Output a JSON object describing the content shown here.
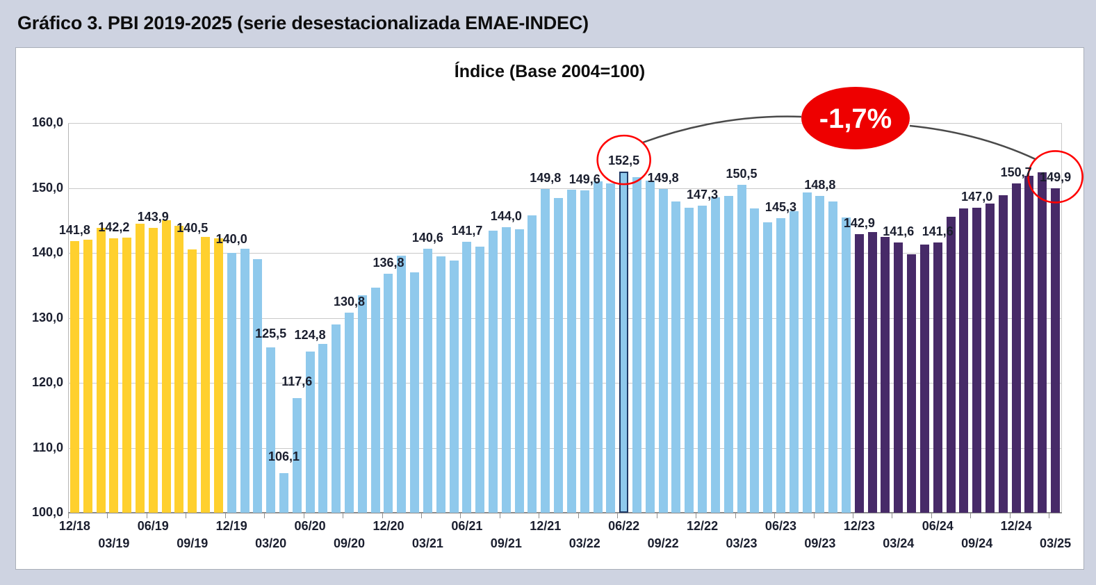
{
  "header": {
    "title": "Gráfico 3. PBI 2019-2025 (serie desestacionalizada EMAE-INDEC)"
  },
  "chart_data": {
    "type": "bar",
    "title": "Índice (Base 2004=100)",
    "ylabel": "",
    "xlabel": "",
    "ylim": [
      100,
      160
    ],
    "grid": true,
    "y_axis": {
      "ticks": [
        "100,0",
        "110,0",
        "120,0",
        "130,0",
        "140,0",
        "150,0",
        "160,0"
      ]
    },
    "color_segments": [
      {
        "color": "#FFD02E",
        "from": 0,
        "to": 11
      },
      {
        "color": "#8FC9EC",
        "from": 12,
        "to": 59
      },
      {
        "color": "#472A68",
        "from": 60,
        "to": 75
      }
    ],
    "highlight_border_color": "#1F3864",
    "bars": [
      {
        "month": "12/18",
        "value": 141.8,
        "label": "141,8"
      },
      {
        "month": "01/19",
        "value": 142.0
      },
      {
        "month": "02/19",
        "value": 143.8
      },
      {
        "month": "03/19",
        "value": 142.2,
        "label": "142,2"
      },
      {
        "month": "04/19",
        "value": 142.4
      },
      {
        "month": "05/19",
        "value": 144.5
      },
      {
        "month": "06/19",
        "value": 143.9,
        "label": "143,9"
      },
      {
        "month": "07/19",
        "value": 145.0
      },
      {
        "month": "08/19",
        "value": 144.2
      },
      {
        "month": "09/19",
        "value": 140.5,
        "label": "140,5",
        "label_dy": 20
      },
      {
        "month": "10/19",
        "value": 142.5
      },
      {
        "month": "11/19",
        "value": 142.2
      },
      {
        "month": "12/19",
        "value": 140.0,
        "label": "140,0",
        "label_dy": 9
      },
      {
        "month": "01/20",
        "value": 140.6
      },
      {
        "month": "02/20",
        "value": 139.0
      },
      {
        "month": "03/20",
        "value": 125.5,
        "label": "125,5",
        "label_dy": 9
      },
      {
        "month": "04/20",
        "value": 106.1,
        "label": "106,1",
        "label_dy": 13
      },
      {
        "month": "05/20",
        "value": 117.6,
        "label": "117,6",
        "label_dy": 13
      },
      {
        "month": "06/20",
        "value": 124.8,
        "label": "124,8",
        "label_dy": 13
      },
      {
        "month": "07/20",
        "value": 126.0
      },
      {
        "month": "08/20",
        "value": 129.0
      },
      {
        "month": "09/20",
        "value": 130.8,
        "label": "130,8"
      },
      {
        "month": "10/20",
        "value": 133.5
      },
      {
        "month": "11/20",
        "value": 134.7
      },
      {
        "month": "12/20",
        "value": 136.8,
        "label": "136,8"
      },
      {
        "month": "01/21",
        "value": 139.6
      },
      {
        "month": "02/21",
        "value": 137.0
      },
      {
        "month": "03/21",
        "value": 140.6,
        "label": "140,6"
      },
      {
        "month": "04/21",
        "value": 139.5
      },
      {
        "month": "05/21",
        "value": 138.8
      },
      {
        "month": "06/21",
        "value": 141.7,
        "label": "141,7"
      },
      {
        "month": "07/21",
        "value": 141.0
      },
      {
        "month": "08/21",
        "value": 143.4
      },
      {
        "month": "09/21",
        "value": 144.0,
        "label": "144,0"
      },
      {
        "month": "10/21",
        "value": 143.6
      },
      {
        "month": "11/21",
        "value": 145.8
      },
      {
        "month": "12/21",
        "value": 149.8,
        "label": "149,8"
      },
      {
        "month": "01/22",
        "value": 148.4
      },
      {
        "month": "02/22",
        "value": 149.7
      },
      {
        "month": "03/22",
        "value": 149.6,
        "label": "149,6"
      },
      {
        "month": "04/22",
        "value": 151.0
      },
      {
        "month": "05/22",
        "value": 150.7
      },
      {
        "month": "06/22",
        "value": 152.5,
        "label": "152,5",
        "highlight": true
      },
      {
        "month": "07/22",
        "value": 151.7
      },
      {
        "month": "08/22",
        "value": 151.1
      },
      {
        "month": "09/22",
        "value": 149.8,
        "label": "149,8"
      },
      {
        "month": "10/22",
        "value": 147.9
      },
      {
        "month": "11/22",
        "value": 147.0
      },
      {
        "month": "12/22",
        "value": 147.3,
        "label": "147,3"
      },
      {
        "month": "01/23",
        "value": 148.6
      },
      {
        "month": "02/23",
        "value": 148.8
      },
      {
        "month": "03/23",
        "value": 150.5,
        "label": "150,5"
      },
      {
        "month": "04/23",
        "value": 146.9
      },
      {
        "month": "05/23",
        "value": 144.7
      },
      {
        "month": "06/23",
        "value": 145.3,
        "label": "145,3"
      },
      {
        "month": "07/23",
        "value": 146.4
      },
      {
        "month": "08/23",
        "value": 149.3
      },
      {
        "month": "09/23",
        "value": 148.8,
        "label": "148,8"
      },
      {
        "month": "10/23",
        "value": 147.9
      },
      {
        "month": "11/23",
        "value": 145.5
      },
      {
        "month": "12/23",
        "value": 142.9,
        "label": "142,9"
      },
      {
        "month": "01/24",
        "value": 143.2
      },
      {
        "month": "02/24",
        "value": 142.5
      },
      {
        "month": "03/24",
        "value": 141.6,
        "label": "141,6"
      },
      {
        "month": "04/24",
        "value": 139.8
      },
      {
        "month": "05/24",
        "value": 141.3
      },
      {
        "month": "06/24",
        "value": 141.6,
        "label": "141,6"
      },
      {
        "month": "07/24",
        "value": 145.6
      },
      {
        "month": "08/24",
        "value": 146.9
      },
      {
        "month": "09/24",
        "value": 147.0,
        "label": "147,0"
      },
      {
        "month": "10/24",
        "value": 147.6
      },
      {
        "month": "11/24",
        "value": 148.9
      },
      {
        "month": "12/24",
        "value": 150.7,
        "label": "150,7"
      },
      {
        "month": "01/25",
        "value": 151.9
      },
      {
        "month": "02/25",
        "value": 152.4
      },
      {
        "month": "03/25",
        "value": 149.9,
        "label": "149,9"
      }
    ],
    "x_labels": [
      {
        "text": "12/18",
        "bar": 0,
        "row": 1
      },
      {
        "text": "03/19",
        "bar": 3,
        "row": 2
      },
      {
        "text": "06/19",
        "bar": 6,
        "row": 1
      },
      {
        "text": "09/19",
        "bar": 9,
        "row": 2
      },
      {
        "text": "12/19",
        "bar": 12,
        "row": 1
      },
      {
        "text": "03/20",
        "bar": 15,
        "row": 2
      },
      {
        "text": "06/20",
        "bar": 18,
        "row": 1
      },
      {
        "text": "09/20",
        "bar": 21,
        "row": 2
      },
      {
        "text": "12/20",
        "bar": 24,
        "row": 1
      },
      {
        "text": "03/21",
        "bar": 27,
        "row": 2
      },
      {
        "text": "06/21",
        "bar": 30,
        "row": 1
      },
      {
        "text": "09/21",
        "bar": 33,
        "row": 2
      },
      {
        "text": "12/21",
        "bar": 36,
        "row": 1
      },
      {
        "text": "03/22",
        "bar": 39,
        "row": 2
      },
      {
        "text": "06/22",
        "bar": 42,
        "row": 1
      },
      {
        "text": "09/22",
        "bar": 45,
        "row": 2
      },
      {
        "text": "12/22",
        "bar": 48,
        "row": 1
      },
      {
        "text": "03/23",
        "bar": 51,
        "row": 2
      },
      {
        "text": "06/23",
        "bar": 54,
        "row": 1
      },
      {
        "text": "09/23",
        "bar": 57,
        "row": 2
      },
      {
        "text": "12/23",
        "bar": 60,
        "row": 1
      },
      {
        "text": "03/24",
        "bar": 63,
        "row": 2
      },
      {
        "text": "06/24",
        "bar": 66,
        "row": 1
      },
      {
        "text": "09/24",
        "bar": 69,
        "row": 2
      },
      {
        "text": "12/24",
        "bar": 72,
        "row": 1
      },
      {
        "text": "03/25",
        "bar": 75,
        "row": 2
      }
    ],
    "annotations": {
      "badge": {
        "text": "-1,7%",
        "fill": "#EE0000",
        "text_color": "#FFFFFF"
      },
      "circled_bars": [
        42,
        75
      ],
      "circle_color": "#FF0000",
      "connector_color": "#4A4A4A"
    }
  }
}
